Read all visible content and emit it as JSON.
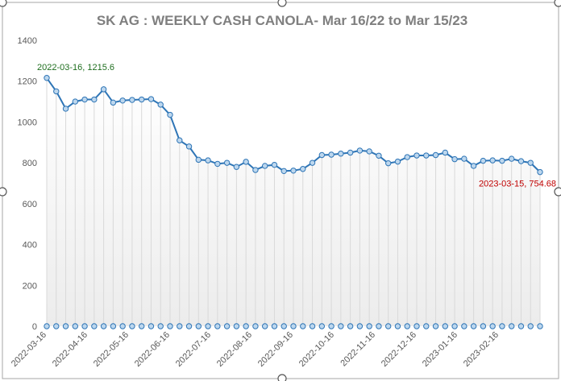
{
  "chart_data": {
    "type": "line",
    "title": "SK AG : WEEKLY CASH CANOLA- Mar 16/22 to Mar 15/23",
    "xlabel": "",
    "ylabel": "",
    "ylim": [
      0,
      1400
    ],
    "yticks": [
      0,
      200,
      400,
      600,
      800,
      1000,
      1200,
      1400
    ],
    "grid": "vertical drop lines from each point",
    "x_tick_labels": [
      "2022-03-16",
      "2022-04-16",
      "2022-05-16",
      "2022-06-16",
      "2022-07-16",
      "2022-08-16",
      "2022-09-16",
      "2022-10-16",
      "2022-11-16",
      "2022-12-16",
      "2023-01-16",
      "2023-02-16"
    ],
    "series": [
      {
        "values": [
          1215.6,
          1150,
          1065,
          1100,
          1110,
          1110,
          1160,
          1095,
          1105,
          1108,
          1110,
          1112,
          1085,
          1035,
          910,
          880,
          815,
          812,
          795,
          800,
          780,
          805,
          765,
          785,
          790,
          760,
          762,
          770,
          800,
          838,
          840,
          845,
          850,
          860,
          856,
          835,
          798,
          806,
          828,
          836,
          836,
          838,
          850,
          818,
          820,
          785,
          810,
          812,
          810,
          820,
          808,
          800,
          754.68
        ],
        "baseline_values": [
          0,
          0,
          0,
          0,
          0,
          0,
          0,
          0,
          0,
          0,
          0,
          0,
          0,
          0,
          0,
          0,
          0,
          0,
          0,
          0,
          0,
          0,
          0,
          0,
          0,
          0,
          0,
          0,
          0,
          0,
          0,
          0,
          0,
          0,
          0,
          0,
          0,
          0,
          0,
          0,
          0,
          0,
          0,
          0,
          0,
          0,
          0,
          0,
          0,
          0,
          0,
          0,
          0
        ]
      }
    ],
    "annotations": [
      {
        "text": "2022-03-16, 1215.6",
        "color": "#1e6e1e"
      },
      {
        "text": "2023-03-15, 754.68",
        "color": "#c00000"
      }
    ],
    "colors": {
      "line": "#2e75b6",
      "marker_fill": "#bdd7ee",
      "droplines": "#d9d9d9",
      "area_top": "#ffffff",
      "area_bottom": "#f0f0f0"
    }
  }
}
